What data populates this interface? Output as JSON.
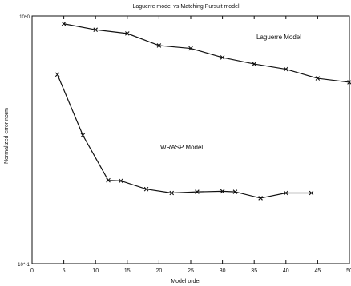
{
  "chart_data": {
    "type": "line",
    "title": "Laguerre model vs Matching Pursuit model",
    "xlabel": "Model order",
    "ylabel": "Normalized error norm",
    "xlim": [
      0,
      50
    ],
    "ylim": [
      0.1,
      1
    ],
    "yscale": "log",
    "xticks": [
      0,
      5,
      10,
      15,
      20,
      25,
      30,
      35,
      40,
      45,
      50
    ],
    "xtick_labels": [
      "0",
      "5",
      "10",
      "15",
      "20",
      "25",
      "30",
      "35",
      "40",
      "45",
      "50"
    ],
    "yticks": [
      0.1,
      1
    ],
    "ytick_labels": [
      "10^-1",
      "10^0"
    ],
    "grid": false,
    "series": [
      {
        "name": "Laguerre Model",
        "marker": "x",
        "x": [
          5,
          10,
          15,
          20,
          25,
          30,
          35,
          40,
          45,
          50
        ],
        "y": [
          0.93,
          0.88,
          0.85,
          0.76,
          0.74,
          0.68,
          0.64,
          0.61,
          0.56,
          0.54
        ]
      },
      {
        "name": "WRASP Model",
        "marker": "x",
        "x": [
          4,
          8,
          12,
          14,
          18,
          22,
          26,
          30,
          32,
          36,
          40,
          44
        ],
        "y": [
          0.58,
          0.33,
          0.217,
          0.216,
          0.2,
          0.193,
          0.195,
          0.196,
          0.195,
          0.184,
          0.193,
          0.193
        ]
      }
    ],
    "annotations": [
      "Laguerre Model",
      "WRASP Model"
    ],
    "colors": {
      "line": "#111111",
      "background": "#ffffff"
    }
  }
}
